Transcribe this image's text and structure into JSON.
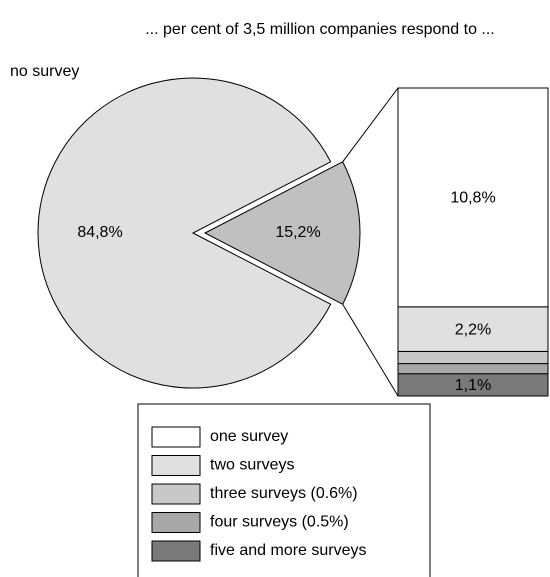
{
  "chart_data": {
    "type": "pie-of-bar",
    "title": "... per cent of 3,5 million companies respond to ...",
    "pie": {
      "categories": [
        "no survey",
        null
      ],
      "values": [
        84.8,
        15.2
      ],
      "value_labels": [
        "84,8%",
        "15,2%"
      ],
      "colors": [
        "#e0e0e0",
        "#c0c0c0"
      ]
    },
    "bar": {
      "series": [
        {
          "name": "one survey",
          "color": "#ffffff",
          "values": [
            10.8
          ],
          "value_labels": [
            "10,8%"
          ]
        },
        {
          "name": "two surveys",
          "color": "#e0e0e0",
          "values": [
            2.2
          ],
          "value_labels": [
            "2,2%"
          ]
        },
        {
          "name": "three surveys (0.6%)",
          "color": "#c8c8c8",
          "values": [
            0.6
          ],
          "value_labels": [
            null
          ]
        },
        {
          "name": "four surveys (0.5%)",
          "color": "#a8a8a8",
          "values": [
            0.5
          ],
          "value_labels": [
            null
          ]
        },
        {
          "name": "five and more surveys",
          "color": "#7a7a7a",
          "values": [
            1.1
          ],
          "value_labels": [
            "1,1%"
          ]
        }
      ]
    }
  }
}
